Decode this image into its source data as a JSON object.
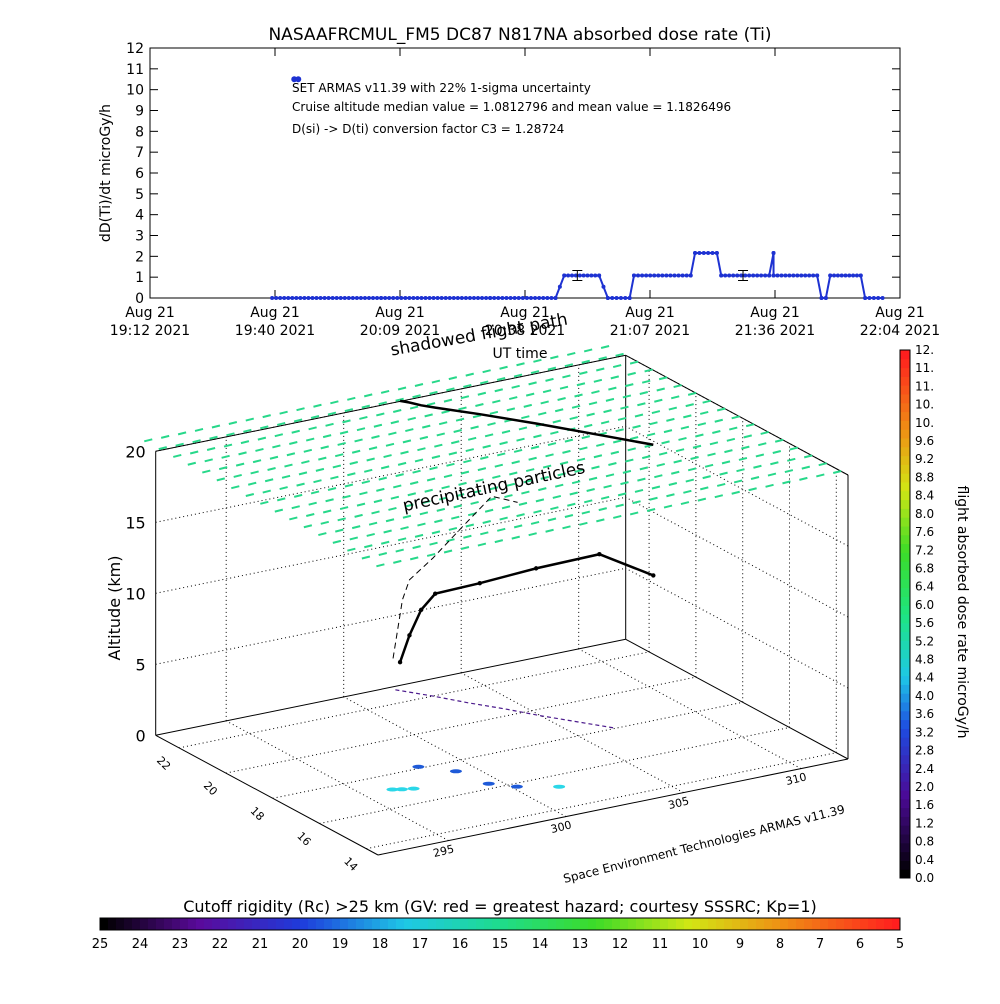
{
  "chart_data": [
    {
      "type": "line",
      "title": "NASAAFRCMUL_FM5 DC87 N817NA absorbed dose rate (Ti)",
      "ylabel": "dD(Ti)/dt microGy/h",
      "xlabel": "UT time",
      "ylim": [
        0,
        12
      ],
      "y_ticks": [
        "0",
        "1",
        "2",
        "3",
        "4",
        "5",
        "6",
        "7",
        "8",
        "9",
        "10",
        "11",
        "12"
      ],
      "x_ticks": [
        {
          "line1": "Aug 21",
          "line2": "19:12 2021"
        },
        {
          "line1": "Aug 21",
          "line2": "19:40 2021"
        },
        {
          "line1": "Aug 21",
          "line2": "20:09 2021"
        },
        {
          "line1": "Aug 21",
          "line2": "20:38 2021"
        },
        {
          "line1": "Aug 21",
          "line2": "21:07 2021"
        },
        {
          "line1": "Aug 21",
          "line2": "21:36 2021"
        },
        {
          "line1": "Aug 21",
          "line2": "22:04 2021"
        }
      ],
      "annotations": [
        "SET ARMAS v11.39 with 22% 1-sigma uncertainty",
        "Cruise altitude median value = 1.0812796 and mean value = 1.1826496",
        "D(si) -> D(ti) conversion factor C3 = 1.28724"
      ],
      "series": [
        {
          "color": "#1e32d2",
          "points": [
            [
              "19:40",
              0.0
            ],
            [
              "20:05",
              0.0
            ],
            [
              "20:30",
              0.0
            ],
            [
              "20:45",
              0.0
            ],
            [
              "20:47",
              1.08
            ],
            [
              "20:55",
              1.08
            ],
            [
              "20:57",
              0.0
            ],
            [
              "21:02",
              0.0
            ],
            [
              "21:03",
              1.08
            ],
            [
              "21:16",
              1.08
            ],
            [
              "21:17",
              2.16
            ],
            [
              "21:22",
              2.16
            ],
            [
              "21:23",
              1.08
            ],
            [
              "21:34",
              1.08
            ],
            [
              "21:35",
              2.16
            ],
            [
              "21:35",
              1.08
            ],
            [
              "21:45",
              1.08
            ],
            [
              "21:46",
              0.0
            ],
            [
              "21:47",
              0.0
            ],
            [
              "21:48",
              1.08
            ],
            [
              "21:55",
              1.08
            ],
            [
              "21:56",
              0.0
            ],
            [
              "22:00",
              0.0
            ]
          ],
          "legend_marker": [
            "19:46",
            10.5
          ]
        }
      ],
      "error_bars": [
        [
          "20:50",
          1.08,
          0.24
        ],
        [
          "21:28",
          1.08,
          0.24
        ]
      ]
    },
    {
      "type": "scatter",
      "subtype": "3d-flight-path",
      "zlabel": "Altitude (km)",
      "z_ticks": [
        "0",
        "5",
        "10",
        "15",
        "20"
      ],
      "y_ticks": [
        "14",
        "16",
        "18",
        "20",
        "22"
      ],
      "x_ticks": [
        "295",
        "300",
        "305",
        "310"
      ],
      "annotations": [
        "shadowed flight path",
        "precipitating particles"
      ],
      "flight_path": [
        [
          302.0,
          22.8,
          0.0
        ],
        [
          302.8,
          22.0,
          0.0
        ],
        [
          303.5,
          21.2,
          0.0
        ],
        [
          304.3,
          20.4,
          0.0
        ],
        [
          305.0,
          19.6,
          0.0
        ],
        [
          305.8,
          18.8,
          0.0
        ],
        [
          306.6,
          18.0,
          0.0
        ],
        [
          302.1,
          22.7,
          2.0
        ],
        [
          302.3,
          22.5,
          4.0
        ],
        [
          302.5,
          22.2,
          6.0
        ],
        [
          302.8,
          21.9,
          7.3
        ],
        [
          303.8,
          21.0,
          8.5
        ],
        [
          305.0,
          19.8,
          10.2
        ],
        [
          306.3,
          18.4,
          12.0
        ],
        [
          307.4,
          17.2,
          11.2
        ]
      ],
      "particle_altitude_km": 20,
      "colorbar": {
        "label": "flight absorbed dose rate microGy/h",
        "ticks": [
          "0.0",
          "0.4",
          "0.8",
          "1.2",
          "1.6",
          "2.0",
          "2.4",
          "2.8",
          "3.2",
          "3.6",
          "4.0",
          "4.4",
          "4.8",
          "5.2",
          "5.6",
          "6.0",
          "6.4",
          "6.8",
          "7.2",
          "7.6",
          "8.0",
          "8.4",
          "8.8",
          "9.2",
          "9.6",
          "10.",
          "10.",
          "11.",
          "11.",
          "12."
        ]
      },
      "credit": "Space Environment Technologies ARMAS v11.39"
    }
  ],
  "bottom_colorbar": {
    "label": "Cutoff rigidity (Rc) >25 km (GV: red = greatest hazard; courtesy SSSRC; Kp=1)",
    "ticks": [
      "25",
      "24",
      "23",
      "22",
      "21",
      "20",
      "19",
      "18",
      "17",
      "16",
      "15",
      "14",
      "13",
      "12",
      "11",
      "10",
      "9",
      "8",
      "7",
      "6",
      "5"
    ]
  },
  "colors": {
    "line": "#1e32d2",
    "particles": "#27d88a",
    "path": "#000000",
    "path_purple": "#4b1a8c"
  }
}
